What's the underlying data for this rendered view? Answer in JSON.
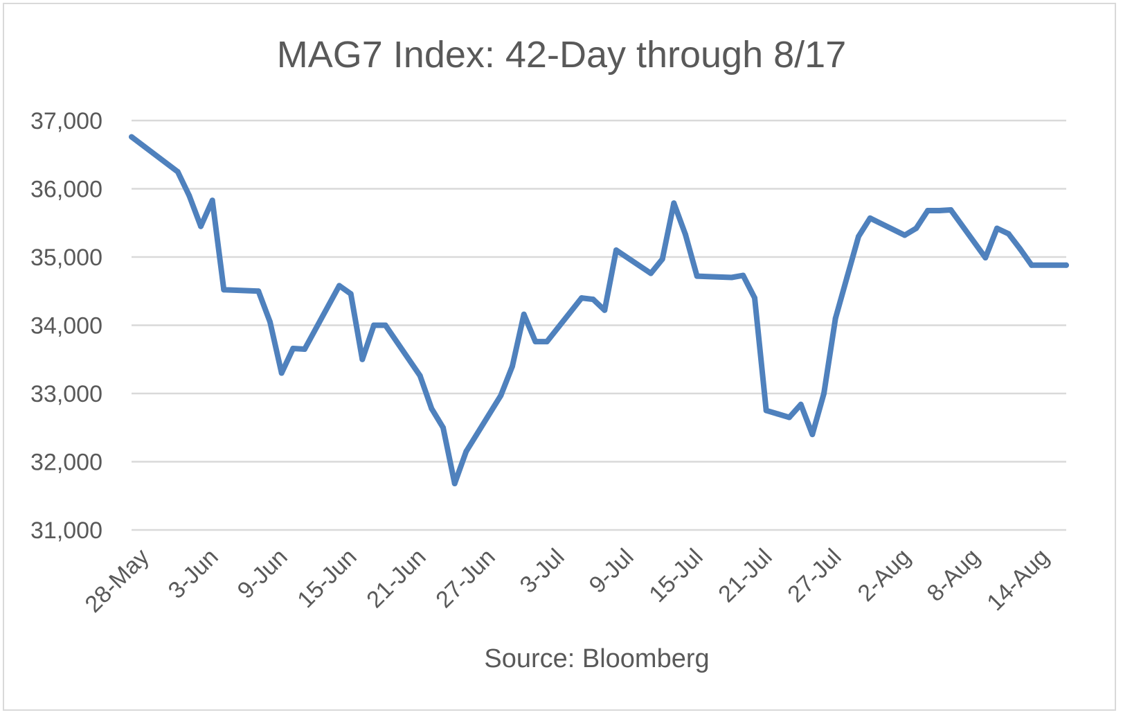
{
  "chart_data": {
    "type": "line",
    "title": "MAG7 Index: 42-Day through 8/17",
    "xlabel": "",
    "ylabel": "",
    "source": "Source: Bloomberg",
    "ylim": [
      31000,
      37000
    ],
    "yticks": [
      "37,000",
      "36,000",
      "35,000",
      "34,000",
      "33,000",
      "32,000",
      "31,000"
    ],
    "ytick_values": [
      37000,
      36000,
      35000,
      34000,
      33000,
      32000,
      31000
    ],
    "xlim": [
      "2024-05-28",
      "2024-08-17"
    ],
    "xticks": [
      "28-May",
      "3-Jun",
      "9-Jun",
      "15-Jun",
      "21-Jun",
      "27-Jun",
      "3-Jul",
      "9-Jul",
      "15-Jul",
      "21-Jul",
      "27-Jul",
      "2-Aug",
      "8-Aug",
      "14-Aug"
    ],
    "xtick_dates": [
      "2024-05-28",
      "2024-06-03",
      "2024-06-09",
      "2024-06-15",
      "2024-06-21",
      "2024-06-27",
      "2024-07-03",
      "2024-07-09",
      "2024-07-15",
      "2024-07-21",
      "2024-07-27",
      "2024-08-02",
      "2024-08-08",
      "2024-08-14"
    ],
    "grid": true,
    "legend": "none",
    "series": [
      {
        "color": "#4f81bd",
        "x": [
          "2024-05-28",
          "2024-06-01",
          "2024-06-02",
          "2024-06-03",
          "2024-06-04",
          "2024-06-05",
          "2024-06-08",
          "2024-06-09",
          "2024-06-10",
          "2024-06-11",
          "2024-06-12",
          "2024-06-15",
          "2024-06-16",
          "2024-06-17",
          "2024-06-18",
          "2024-06-19",
          "2024-06-22",
          "2024-06-23",
          "2024-06-24",
          "2024-06-25",
          "2024-06-26",
          "2024-06-29",
          "2024-06-30",
          "2024-07-01",
          "2024-07-02",
          "2024-07-03",
          "2024-07-06",
          "2024-07-07",
          "2024-07-08",
          "2024-07-09",
          "2024-07-12",
          "2024-07-13",
          "2024-07-14",
          "2024-07-15",
          "2024-07-16",
          "2024-07-19",
          "2024-07-20",
          "2024-07-21",
          "2024-07-22",
          "2024-07-23",
          "2024-07-24",
          "2024-07-25",
          "2024-07-26",
          "2024-07-27",
          "2024-07-28",
          "2024-07-29",
          "2024-07-30",
          "2024-07-31",
          "2024-08-03",
          "2024-08-04",
          "2024-08-05",
          "2024-08-06",
          "2024-08-07",
          "2024-08-10",
          "2024-08-11",
          "2024-08-12",
          "2024-08-13",
          "2024-08-14",
          "2024-08-17"
        ],
        "values": [
          36760,
          36250,
          35900,
          35450,
          35830,
          34520,
          34500,
          34050,
          33300,
          33660,
          33650,
          34580,
          34460,
          33500,
          34000,
          34000,
          33260,
          32780,
          32500,
          31680,
          32150,
          32970,
          33400,
          34160,
          33760,
          33760,
          34400,
          34380,
          34220,
          35100,
          34760,
          34970,
          35790,
          35330,
          34720,
          34700,
          34730,
          34400,
          32750,
          32700,
          32650,
          32840,
          32400,
          33000,
          34100,
          34700,
          35300,
          35570,
          35320,
          35420,
          35680,
          35680,
          35690,
          34990,
          35420,
          35340,
          35120,
          34880,
          34880
        ]
      }
    ]
  }
}
